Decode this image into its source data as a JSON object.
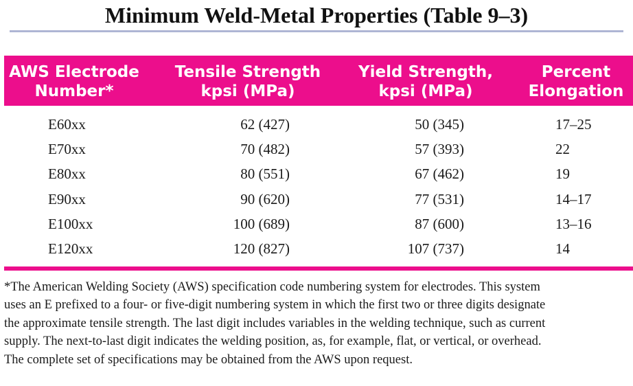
{
  "title": "Minimum Weld-Metal Properties (Table 9–3)",
  "table": {
    "headers": [
      [
        "AWS Electrode",
        "Number*"
      ],
      [
        "Tensile Strength",
        "kpsi (MPa)"
      ],
      [
        "Yield Strength,",
        "kpsi (MPa)"
      ],
      [
        "Percent",
        "Elongation"
      ]
    ],
    "rows": [
      [
        "E60xx",
        "62 (427)",
        "50 (345)",
        "17–25"
      ],
      [
        "E70xx",
        "70 (482)",
        "57 (393)",
        "22"
      ],
      [
        "E80xx",
        "80 (551)",
        "67 (462)",
        "19"
      ],
      [
        "E90xx",
        "90 (620)",
        "77 (531)",
        "14–17"
      ],
      [
        "E100xx",
        "100 (689)",
        "87 (600)",
        "13–16"
      ],
      [
        "E120xx",
        "120 (827)",
        "107 (737)",
        "14"
      ]
    ]
  },
  "footnote": [
    "*The American Welding Society (AWS) specification code numbering system for electrodes. This system",
    "uses an E prefixed to a four- or five-digit numbering system in which the first two or three digits designate",
    "the approximate tensile strength. The last digit includes variables in the welding technique, such as current",
    "supply. The next-to-last digit indicates the welding position, as, for example, flat, or vertical, or overhead.",
    "The complete set of specifications may be obtained from the AWS upon request."
  ],
  "colors": {
    "header_bg": "#ec0e8c",
    "title_rule": "#aeb5d4",
    "bottom_rule": "#ec0e8c"
  }
}
